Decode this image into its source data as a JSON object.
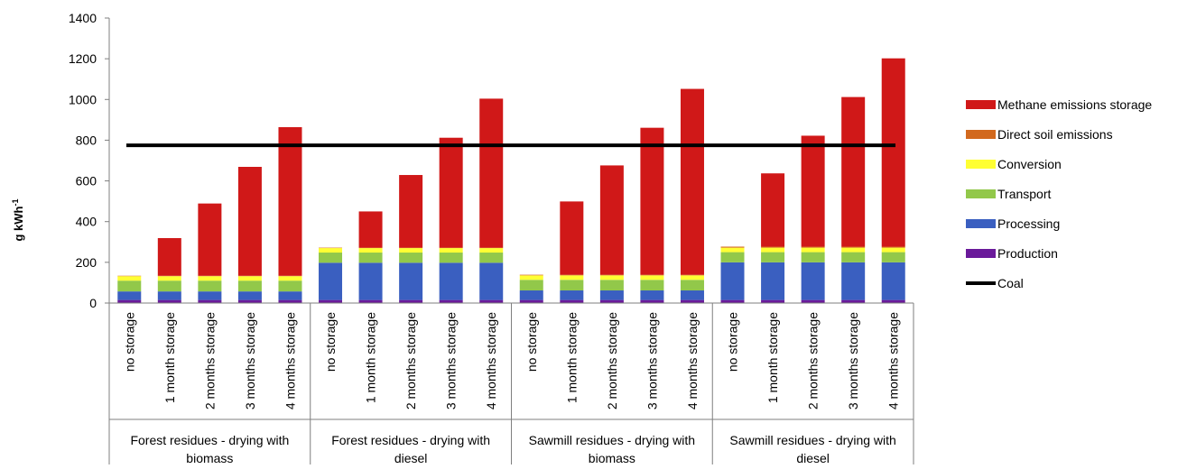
{
  "chart_data": {
    "type": "bar",
    "stacked": true,
    "title": "",
    "ylabel": "g kWh",
    "ylabel_sup": "-1",
    "xlabel": "",
    "ylim": [
      0,
      1400
    ],
    "yticks": [
      0,
      200,
      400,
      600,
      800,
      1000,
      1200,
      1400
    ],
    "grid": false,
    "legend_position": "right",
    "groups": [
      "Forest residues - drying with biomass",
      "Forest residues - drying with diesel",
      "Sawmill residues - drying with biomass",
      "Sawmill residues - drying with diesel"
    ],
    "categories": [
      "no storage",
      "1 month storage",
      "2 months storage",
      "3 months storage",
      "4 months storage"
    ],
    "series": [
      {
        "name": "Production",
        "color": "#6a1a9a",
        "values": [
          [
            15,
            15,
            15,
            15,
            15
          ],
          [
            15,
            15,
            15,
            15,
            15
          ],
          [
            15,
            15,
            15,
            15,
            15
          ],
          [
            15,
            15,
            15,
            15,
            15
          ]
        ]
      },
      {
        "name": "Processing",
        "color": "#3a5fc0",
        "values": [
          [
            42,
            42,
            42,
            42,
            42
          ],
          [
            183,
            183,
            183,
            183,
            183
          ],
          [
            47,
            47,
            47,
            47,
            47
          ],
          [
            185,
            185,
            185,
            185,
            185
          ]
        ]
      },
      {
        "name": "Transport",
        "color": "#92c84a",
        "values": [
          [
            53,
            53,
            53,
            53,
            53
          ],
          [
            50,
            50,
            50,
            50,
            50
          ],
          [
            52,
            52,
            52,
            52,
            52
          ],
          [
            50,
            50,
            50,
            50,
            50
          ]
        ]
      },
      {
        "name": "Conversion",
        "color": "#ffff33",
        "values": [
          [
            22,
            22,
            22,
            22,
            22
          ],
          [
            22,
            22,
            22,
            22,
            22
          ],
          [
            22,
            22,
            22,
            22,
            22
          ],
          [
            22,
            22,
            22,
            22,
            22
          ]
        ]
      },
      {
        "name": "Direct soil emissions",
        "color": "#d2691e",
        "values": [
          [
            2,
            2,
            2,
            2,
            2
          ],
          [
            2,
            2,
            2,
            2,
            2
          ],
          [
            3,
            3,
            3,
            3,
            3
          ],
          [
            5,
            5,
            5,
            5,
            5
          ]
        ]
      },
      {
        "name": "Methane emissions storage",
        "color": "#d01818",
        "values": [
          [
            0,
            185,
            355,
            535,
            730
          ],
          [
            0,
            178,
            357,
            540,
            732
          ],
          [
            0,
            360,
            537,
            722,
            913
          ],
          [
            0,
            360,
            545,
            735,
            925
          ]
        ]
      }
    ],
    "reference_line": {
      "name": "Coal",
      "value": 775,
      "color": "#000000"
    },
    "legend_order": [
      "Methane emissions storage",
      "Direct soil emissions",
      "Conversion",
      "Transport",
      "Processing",
      "Production",
      "Coal"
    ]
  }
}
